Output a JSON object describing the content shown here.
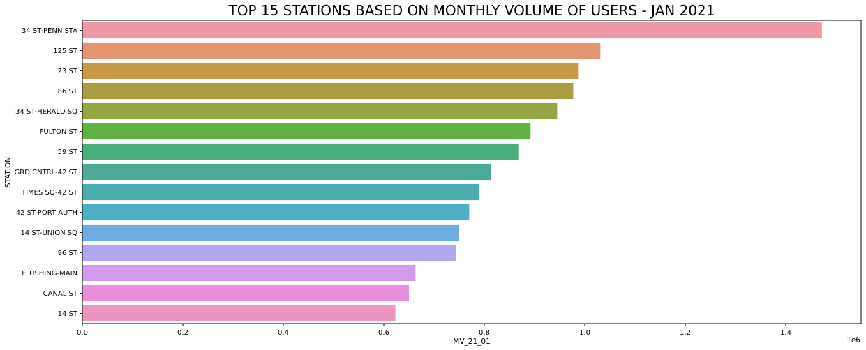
{
  "chart_data": {
    "type": "bar",
    "orientation": "horizontal",
    "title": "TOP 15 STATIONS BASED ON MONTHLY VOLUME OF USERS - JAN 2021",
    "xlabel": "MV_21_01",
    "ylabel": "STATION",
    "x_scale_label": "1e6",
    "xlim": [
      0,
      1.55
    ],
    "x_ticks": [
      0.0,
      0.2,
      0.4,
      0.6,
      0.8,
      1.0,
      1.2,
      1.4
    ],
    "x_tick_labels": [
      "0.0",
      "0.2",
      "0.4",
      "0.6",
      "0.8",
      "1.0",
      "1.2",
      "1.4"
    ],
    "grid": false,
    "categories": [
      "34 ST-PENN STA",
      "125 ST",
      "23 ST",
      "86 ST",
      "34 ST-HERALD SQ",
      "FULTON ST",
      "59 ST",
      "GRD CNTRL-42 ST",
      "TIMES SQ-42 ST",
      "42 ST-PORT AUTH",
      "14 ST-UNION SQ",
      "96 ST",
      "FLUSHING-MAIN",
      "CANAL ST",
      "14 ST"
    ],
    "values": [
      1.472,
      1.031,
      0.988,
      0.977,
      0.945,
      0.892,
      0.869,
      0.814,
      0.789,
      0.77,
      0.75,
      0.743,
      0.663,
      0.65,
      0.623
    ],
    "colors": [
      "#ee9aa6",
      "#e49473",
      "#c89a48",
      "#aa9e42",
      "#97a645",
      "#60b044",
      "#49ad7b",
      "#4aaa95",
      "#4bacad",
      "#4eafc6",
      "#6cace0",
      "#b0a7ed",
      "#d39beb",
      "#ea8fe0",
      "#eb95c0"
    ]
  }
}
